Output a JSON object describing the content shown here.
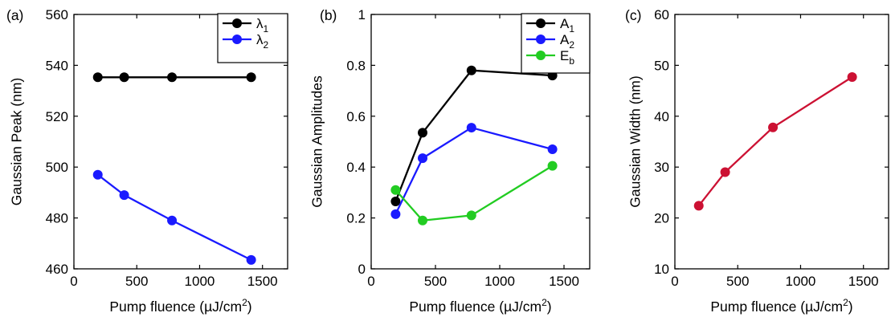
{
  "chart_data": [
    {
      "type": "line",
      "panel_label": "(a)",
      "xlabel": "Pump fluence (µJ/cm²)",
      "xlabel_parts": {
        "main": "Pump fluence (µJ/cm",
        "sup": "2",
        "end": ")"
      },
      "ylabel": "Gaussian Peak (nm)",
      "xlim": [
        0,
        1700
      ],
      "ylim": [
        460,
        560
      ],
      "xticks": [
        0,
        500,
        1000,
        1500
      ],
      "yticks": [
        460,
        480,
        500,
        520,
        540,
        560
      ],
      "legend_position": "top-right",
      "grid": false,
      "series": [
        {
          "name": "λ1",
          "name_base": "λ",
          "name_sub": "1",
          "color": "#000000",
          "x": [
            190,
            400,
            780,
            1410
          ],
          "y": [
            535.3,
            535.3,
            535.3,
            535.3
          ]
        },
        {
          "name": "λ2",
          "name_base": "λ",
          "name_sub": "2",
          "color": "#1a1aff",
          "x": [
            190,
            400,
            780,
            1410
          ],
          "y": [
            497,
            489,
            479,
            463.5
          ]
        }
      ]
    },
    {
      "type": "line",
      "panel_label": "(b)",
      "xlabel": "Pump fluence (µJ/cm²)",
      "xlabel_parts": {
        "main": "Pump fluence (µJ/cm",
        "sup": "2",
        "end": ")"
      },
      "ylabel": "Gaussian Amplitudes",
      "xlim": [
        0,
        1700
      ],
      "ylim": [
        0,
        1
      ],
      "xticks": [
        0,
        500,
        1000,
        1500
      ],
      "yticks": [
        0,
        0.2,
        0.4,
        0.6,
        0.8,
        1
      ],
      "ytick_labels": [
        "0",
        "0.2",
        "0.4",
        "0.6",
        "0.8",
        "1"
      ],
      "legend_position": "top-right",
      "grid": false,
      "series": [
        {
          "name": "A1",
          "name_base": "A",
          "name_sub": "1",
          "color": "#000000",
          "x": [
            190,
            400,
            780,
            1410
          ],
          "y": [
            0.265,
            0.535,
            0.78,
            0.76
          ]
        },
        {
          "name": "A2",
          "name_base": "A",
          "name_sub": "2",
          "color": "#1a1aff",
          "x": [
            190,
            400,
            780,
            1410
          ],
          "y": [
            0.215,
            0.435,
            0.555,
            0.47
          ]
        },
        {
          "name": "Eb",
          "name_base": "E",
          "name_sub": "b",
          "color": "#22cc22",
          "x": [
            190,
            400,
            780,
            1410
          ],
          "y": [
            0.31,
            0.19,
            0.21,
            0.405
          ]
        }
      ]
    },
    {
      "type": "line",
      "panel_label": "(c)",
      "xlabel": "Pump fluence (µJ/cm²)",
      "xlabel_parts": {
        "main": "Pump fluence (µJ/cm",
        "sup": "2",
        "end": ")"
      },
      "ylabel": "Gaussian Width (nm)",
      "xlim": [
        0,
        1700
      ],
      "ylim": [
        10,
        60
      ],
      "xticks": [
        0,
        500,
        1000,
        1500
      ],
      "yticks": [
        10,
        20,
        30,
        40,
        50,
        60
      ],
      "legend_position": "none",
      "grid": false,
      "series": [
        {
          "color": "#cc1133",
          "x": [
            190,
            400,
            780,
            1410
          ],
          "y": [
            22.4,
            29,
            37.8,
            47.7
          ]
        }
      ]
    }
  ]
}
